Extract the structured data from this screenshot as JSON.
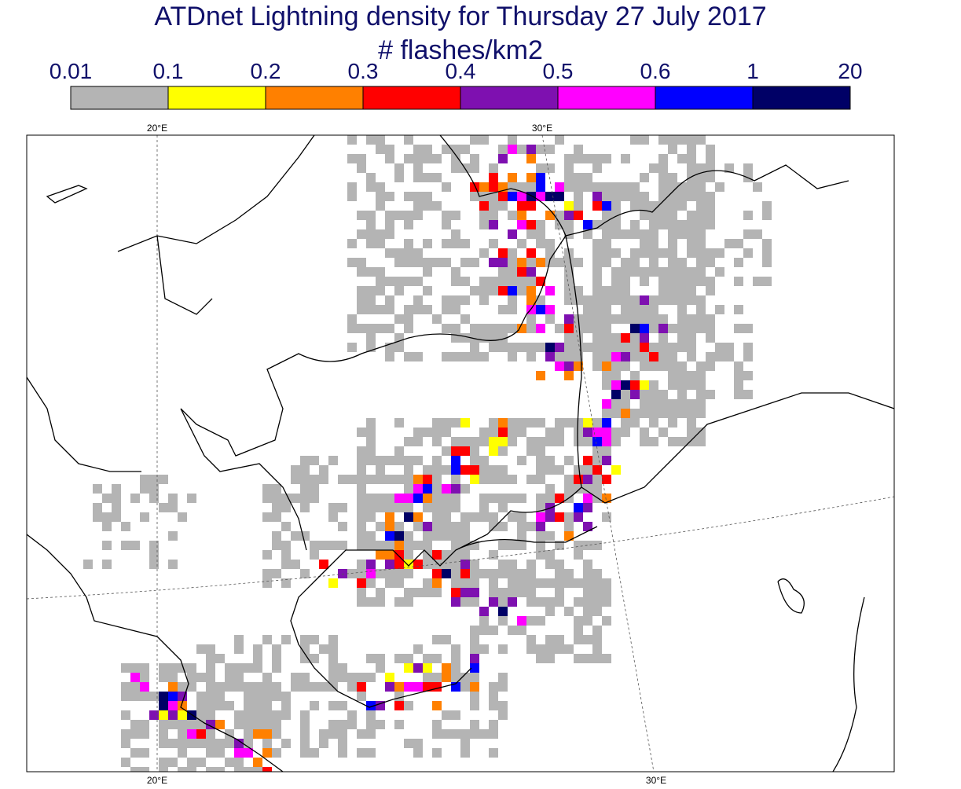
{
  "header": {
    "title": "ATDnet Lightning density for Thursday 27 July 2017",
    "subtitle": "# flashes/km2"
  },
  "colorbar": {
    "labels": [
      "0.01",
      "0.1",
      "0.2",
      "0.3",
      "0.4",
      "0.5",
      "0.6",
      "1",
      "20"
    ],
    "colors": [
      "#b4b4b4",
      "#ffff00",
      "#ff8000",
      "#ff0000",
      "#7e10b0",
      "#ff00ff",
      "#0000ff",
      "#000066"
    ]
  },
  "map": {
    "lon_labels_top": [
      "20°E",
      "30°E"
    ],
    "lon_labels_bottom": [
      "20°E",
      "30°E"
    ]
  }
}
